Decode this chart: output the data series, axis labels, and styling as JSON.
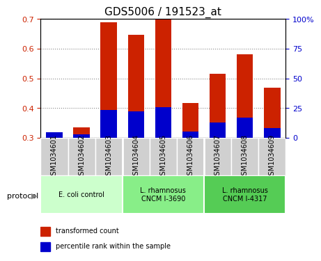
{
  "title": "GDS5006 / 191523_at",
  "samples": [
    "GSM1034601",
    "GSM1034602",
    "GSM1034603",
    "GSM1034604",
    "GSM1034605",
    "GSM1034606",
    "GSM1034607",
    "GSM1034608",
    "GSM1034609"
  ],
  "transformed_count": [
    0.318,
    0.335,
    0.69,
    0.648,
    0.702,
    0.418,
    0.515,
    0.582,
    0.468
  ],
  "percentile_rank": [
    0.318,
    0.312,
    0.393,
    0.39,
    0.403,
    0.322,
    0.352,
    0.368,
    0.333
  ],
  "bar_base": 0.3,
  "ylim_left": [
    0.3,
    0.7
  ],
  "ylim_right": [
    0,
    100
  ],
  "yticks_left": [
    0.3,
    0.4,
    0.5,
    0.6,
    0.7
  ],
  "yticks_right": [
    0,
    25,
    50,
    75,
    100
  ],
  "red_color": "#cc2200",
  "blue_color": "#0000cc",
  "groups": [
    {
      "label": "E. coli control",
      "start": 0,
      "end": 2,
      "color": "#ccffcc"
    },
    {
      "label": "L. rhamnosus\nCNCM I-3690",
      "start": 3,
      "end": 5,
      "color": "#88ee88"
    },
    {
      "label": "L. rhamnosus\nCNCM I-4317",
      "start": 6,
      "end": 8,
      "color": "#55cc55"
    }
  ],
  "legend_red": "transformed count",
  "legend_blue": "percentile rank within the sample",
  "bar_width": 0.6,
  "xlabel_color": "red",
  "ylabel_right_color": "blue",
  "grid_color": "#888888",
  "tick_label_fontsize": 7,
  "title_fontsize": 11,
  "axis_label_fontsize": 8,
  "protocol_label": "protocol"
}
